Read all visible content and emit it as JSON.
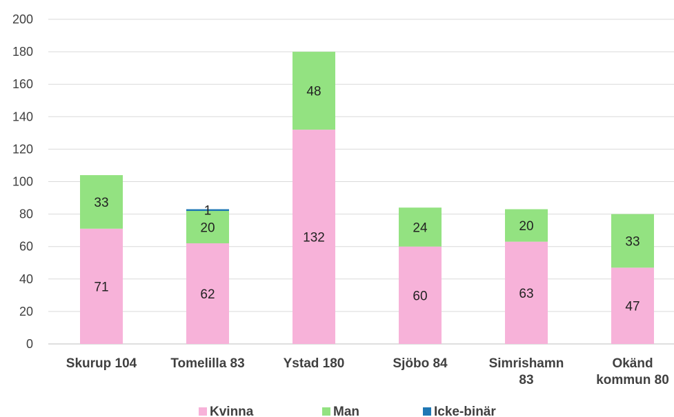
{
  "chart_data": {
    "type": "bar",
    "stacked": true,
    "categories": [
      [
        "Skurup 104"
      ],
      [
        "Tomelilla 83"
      ],
      [
        "Ystad 180"
      ],
      [
        "Sjöbo 84"
      ],
      [
        "Simrishamn",
        "83"
      ],
      [
        "Okänd",
        "kommun 80"
      ]
    ],
    "series": [
      {
        "name": "Kvinna",
        "color": "#f7b2d9",
        "values": [
          71,
          62,
          132,
          60,
          63,
          47
        ]
      },
      {
        "name": "Man",
        "color": "#93e281",
        "values": [
          33,
          20,
          48,
          24,
          20,
          33
        ]
      },
      {
        "name": "Icke-binär",
        "color": "#1f77b4",
        "values": [
          0,
          1,
          0,
          0,
          0,
          0
        ]
      }
    ],
    "ylim": [
      0,
      200
    ],
    "yticks": [
      0,
      20,
      40,
      60,
      80,
      100,
      120,
      140,
      160,
      180,
      200
    ],
    "grid": true,
    "legend_position": "bottom"
  }
}
